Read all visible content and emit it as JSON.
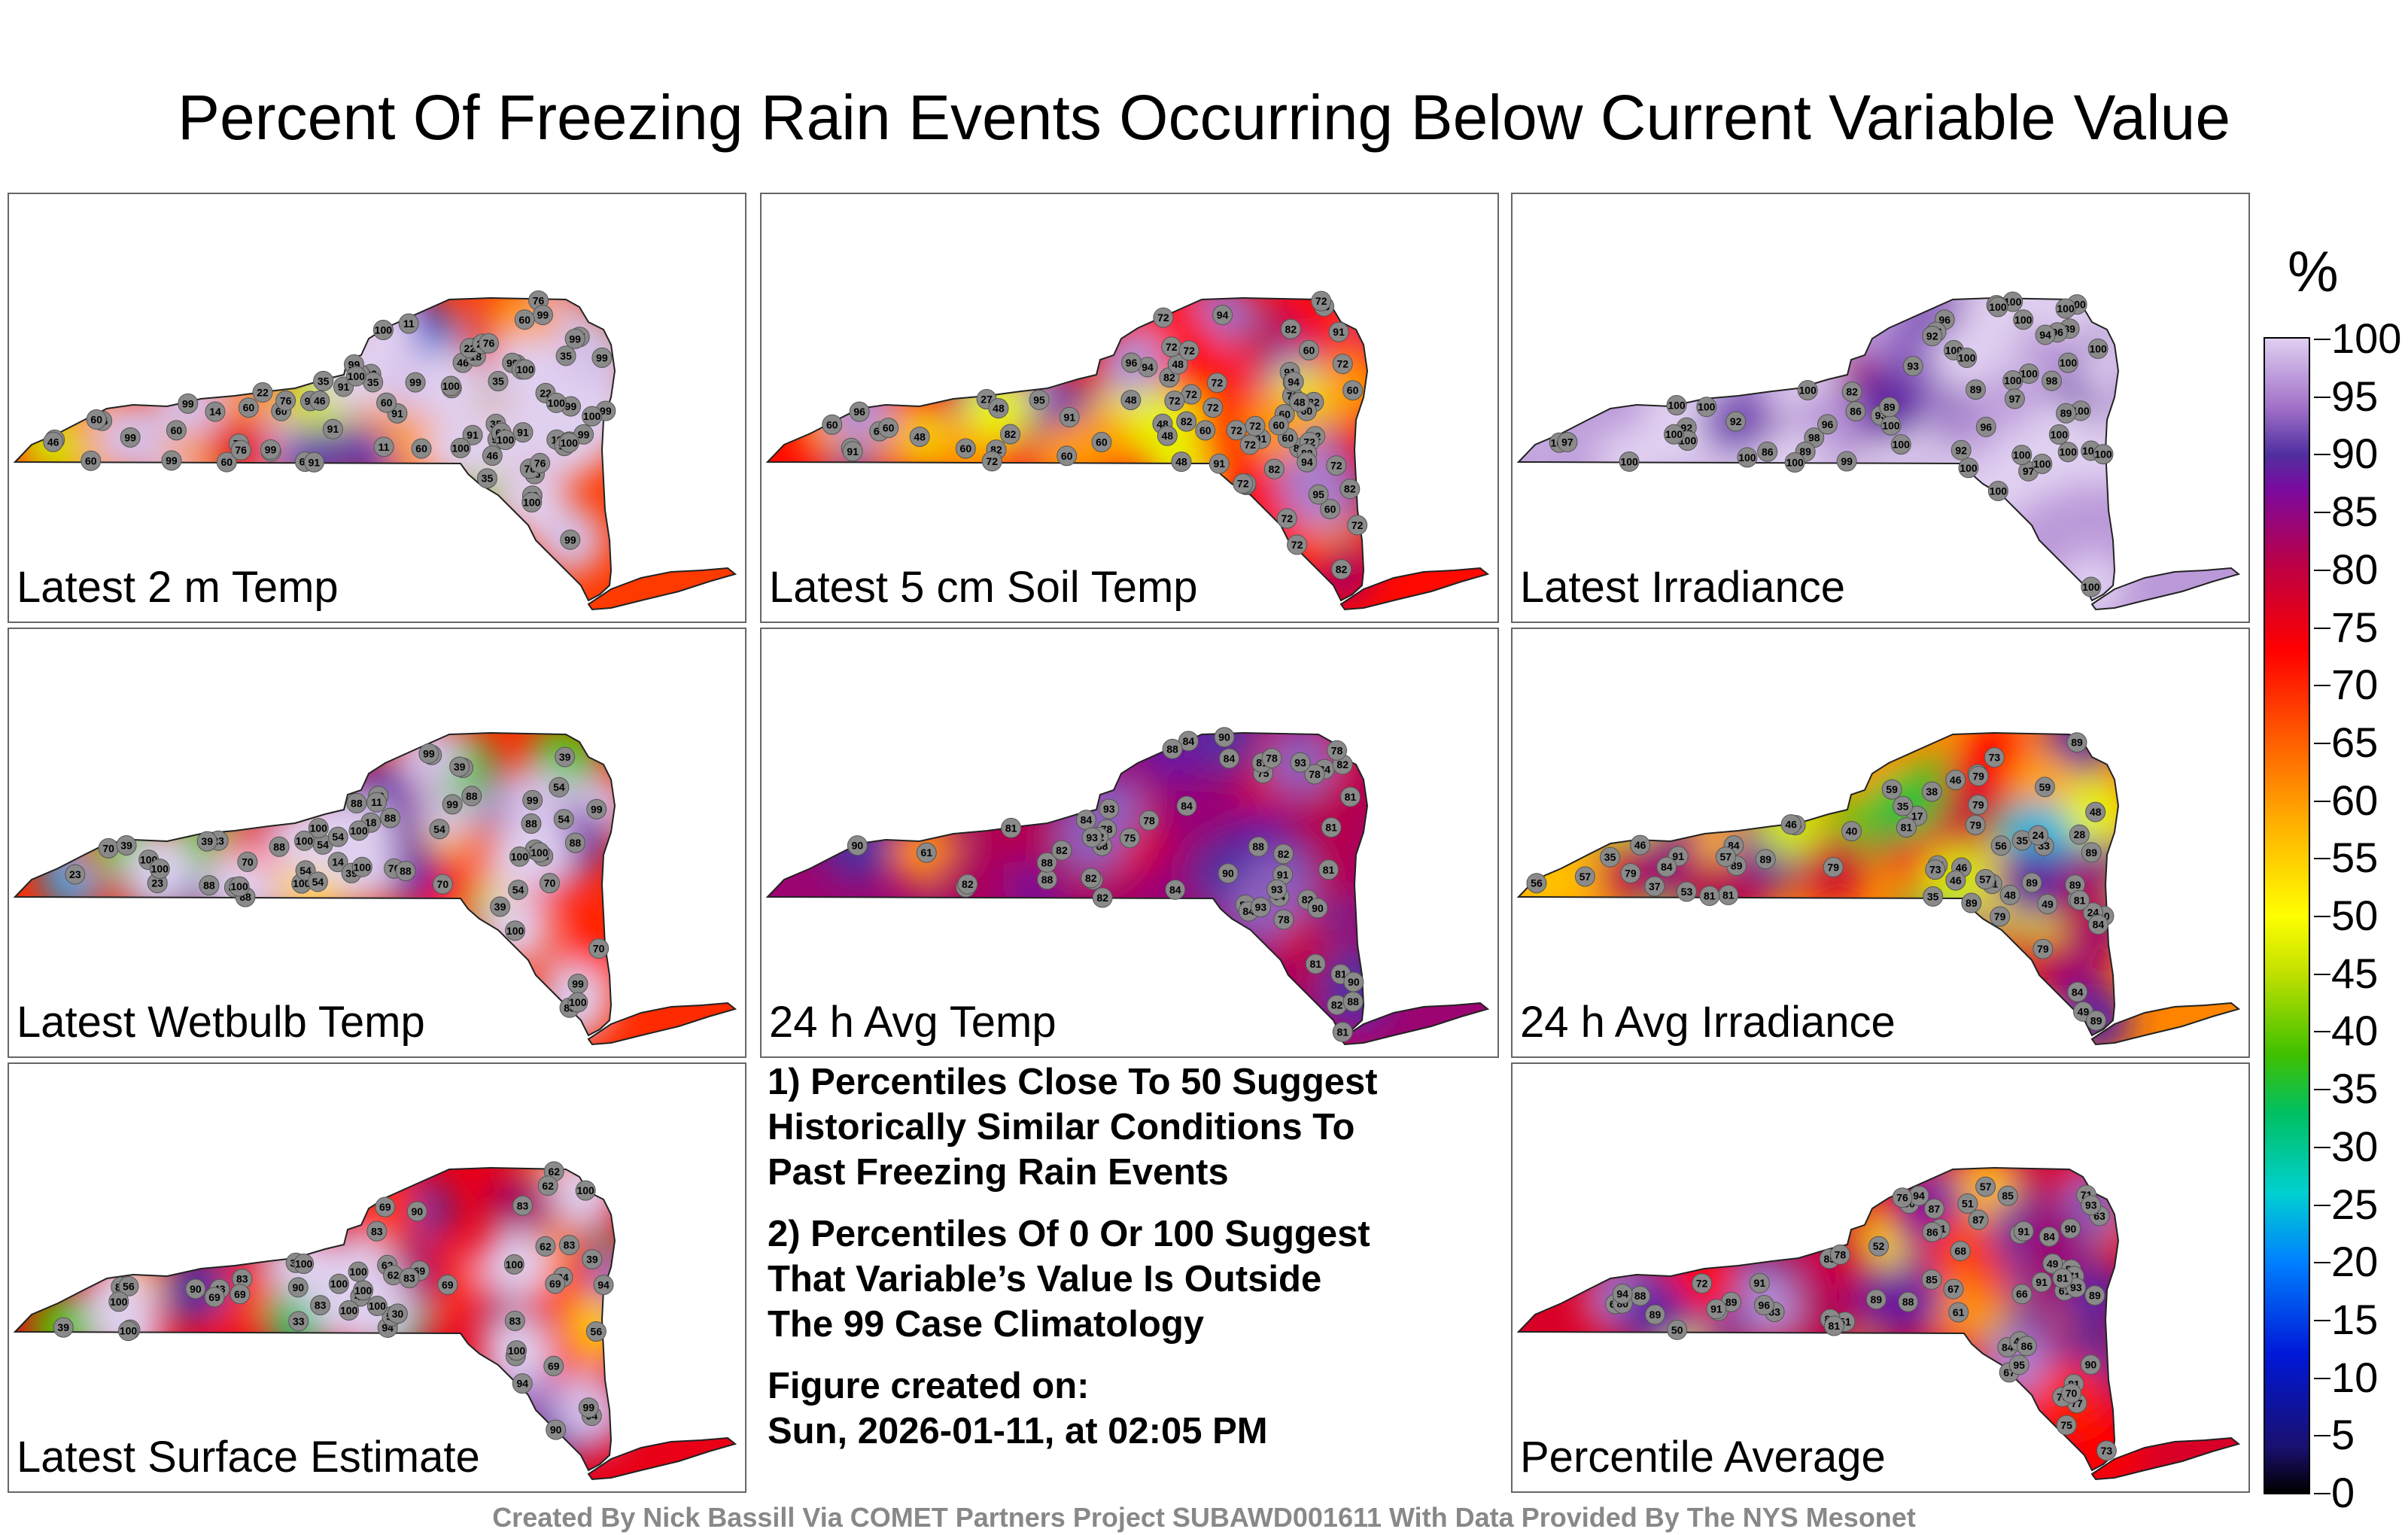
{
  "title": "Percent Of Freezing Rain Events Occurring Below Current Variable Value",
  "colorbar": {
    "unit": "%",
    "ticks": [
      "0",
      "5",
      "10",
      "15",
      "20",
      "25",
      "30",
      "35",
      "40",
      "45",
      "50",
      "55",
      "60",
      "65",
      "70",
      "75",
      "80",
      "85",
      "90",
      "95",
      "100"
    ]
  },
  "notes": {
    "note1": [
      "1) Percentiles Close To 50 Suggest",
      "Historically Similar Conditions To",
      "Past Freezing Rain Events"
    ],
    "note2": [
      "2) Percentiles Of 0 Or 100 Suggest",
      "That Variable’s Value Is Outside",
      "The 99 Case Climatology"
    ],
    "created_label": "Figure created on:",
    "created_value": "Sun, 2026-01-11, at 02:05 PM"
  },
  "footer": "Created By Nick Bassill Via COMET Partners Project SUBAWD001611 With Data Provided By The NYS Mesonet",
  "chart_data": [
    {
      "type": "heatmap",
      "title": "Latest 2 m Temp",
      "zlim": [
        0,
        100
      ],
      "station_values": [
        14,
        35,
        46,
        60,
        91,
        76,
        60,
        22,
        14,
        35,
        11,
        18,
        22,
        11,
        35,
        11,
        60,
        18,
        99,
        91,
        76,
        60,
        99,
        91,
        35,
        76,
        91,
        60,
        99,
        60,
        22,
        46,
        35,
        99,
        91,
        22,
        25,
        60,
        35,
        60,
        35,
        99,
        91,
        99,
        76,
        60,
        46,
        99,
        35,
        46,
        99,
        60,
        76,
        99,
        60,
        99,
        91,
        76,
        91,
        99,
        60,
        35,
        91,
        99,
        60,
        76,
        99,
        99,
        76,
        99,
        60,
        99,
        100,
        100,
        100,
        99,
        100,
        100,
        100,
        100,
        100,
        100,
        100
      ]
    },
    {
      "type": "heatmap",
      "title": "Latest 5 cm Soil Temp",
      "zlim": [
        0,
        100
      ],
      "station_values": [
        82,
        95,
        94,
        82,
        94,
        91,
        82,
        91,
        48,
        95,
        72,
        82,
        72,
        91,
        82,
        91,
        60,
        82,
        72,
        72,
        60,
        72,
        91,
        48,
        72,
        82,
        82,
        72,
        48,
        60,
        82,
        82,
        82,
        72,
        60,
        60,
        72,
        60,
        72,
        72,
        72,
        72,
        72,
        82,
        48,
        72,
        72,
        72,
        72,
        48,
        94,
        91,
        60,
        27,
        60,
        60,
        48,
        60,
        72,
        48,
        60,
        60,
        82,
        60,
        72,
        82,
        94,
        72,
        48,
        60,
        96,
        96,
        95,
        48,
        60
      ]
    },
    {
      "type": "heatmap",
      "title": "Latest Irradiance",
      "zlim": [
        0,
        100
      ],
      "station_values": [
        100,
        92,
        86,
        93,
        97,
        100,
        100,
        99,
        100,
        100,
        100,
        100,
        100,
        98,
        92,
        100,
        100,
        100,
        89,
        100,
        96,
        97,
        82,
        100,
        100,
        89,
        86,
        100,
        92,
        98,
        100,
        93,
        100,
        89,
        100,
        86,
        100,
        96,
        96,
        89,
        94,
        100,
        89,
        100,
        94,
        100,
        100,
        100,
        100,
        96,
        100,
        92,
        100,
        97,
        100,
        100,
        100,
        100,
        100
      ]
    },
    {
      "type": "heatmap",
      "title": "Latest Wetbulb Temp",
      "zlim": [
        0,
        100
      ],
      "station_values": [
        14,
        39,
        54,
        88,
        88,
        54,
        23,
        10,
        11,
        11,
        18,
        23,
        39,
        54,
        99,
        54,
        88,
        88,
        70,
        39,
        88,
        100,
        99,
        54,
        70,
        88,
        88,
        39,
        99,
        70,
        100,
        88,
        88,
        54,
        70,
        88,
        70,
        39,
        54,
        88,
        23,
        39,
        39,
        54,
        70,
        88,
        88,
        100,
        99,
        100,
        99,
        100,
        100,
        100,
        100,
        100,
        100,
        100,
        100
      ]
    },
    {
      "type": "heatmap",
      "title": "24 h Avg Temp",
      "zlim": [
        0,
        100
      ],
      "station_values": [
        78,
        84,
        84,
        82,
        81,
        75,
        75,
        82,
        61,
        81,
        84,
        88,
        90,
        88,
        82,
        88,
        82,
        81,
        84,
        81,
        81,
        82,
        78,
        81,
        82,
        78,
        82,
        81,
        84,
        78,
        84,
        88,
        78,
        81,
        75,
        82,
        84,
        78,
        82,
        84,
        90,
        88,
        90,
        82,
        84,
        90,
        88,
        90,
        91,
        93,
        93,
        93,
        93,
        93
      ]
    },
    {
      "type": "heatmap",
      "title": "24 h Avg Irradiance",
      "zlim": [
        0,
        100
      ],
      "station_values": [
        40,
        17,
        28,
        35,
        46,
        53,
        24,
        59,
        57,
        79,
        38,
        35,
        46,
        40,
        56,
        37,
        46,
        49,
        64,
        48,
        33,
        57,
        79,
        71,
        73,
        56,
        49,
        79,
        81,
        73,
        84,
        89,
        79,
        89,
        91,
        89,
        89,
        89,
        84,
        84,
        89,
        81,
        79,
        79,
        73,
        48,
        35,
        57,
        59,
        89,
        81,
        84,
        48,
        57,
        24,
        89,
        79,
        46,
        35,
        46,
        81
      ]
    },
    {
      "type": "heatmap",
      "title": "Latest Surface Estimate",
      "zlim": [
        0,
        100
      ],
      "station_values": [
        34,
        62,
        39,
        43,
        83,
        94,
        83,
        69,
        39,
        30,
        56,
        30,
        62,
        90,
        94,
        83,
        69,
        90,
        62,
        69,
        56,
        69,
        90,
        83,
        62,
        62,
        83,
        69,
        94,
        83,
        56,
        33,
        43,
        62,
        69,
        83,
        69,
        90,
        94,
        83,
        83,
        99,
        100,
        100,
        100,
        100,
        100,
        100,
        100,
        100,
        100,
        100,
        100
      ]
    },
    {
      "type": "heatmap",
      "title": "Percentile Average",
      "zlim": [
        0,
        100
      ],
      "station_values": [
        52,
        61,
        64,
        53,
        84,
        83,
        71,
        77,
        66,
        49,
        50,
        68,
        45,
        51,
        51,
        60,
        88,
        75,
        83,
        81,
        67,
        73,
        85,
        87,
        89,
        86,
        81,
        71,
        67,
        57,
        73,
        63,
        84,
        85,
        80,
        86,
        90,
        94,
        93,
        90,
        91,
        95,
        94,
        91,
        89,
        95,
        96,
        91,
        85,
        81,
        76,
        93,
        72,
        81,
        91,
        78,
        84,
        87,
        70,
        89,
        68,
        61,
        89,
        88
      ]
    }
  ],
  "panels": [
    {
      "label": "Latest 2 m Temp"
    },
    {
      "label": "Latest 5 cm Soil Temp"
    },
    {
      "label": "Latest Irradiance"
    },
    {
      "label": "Latest Wetbulb Temp"
    },
    {
      "label": "24 h Avg Temp"
    },
    {
      "label": "24 h Avg Irradiance"
    },
    {
      "label": "Latest Surface Estimate"
    },
    {
      "label": "Percentile Average"
    }
  ]
}
